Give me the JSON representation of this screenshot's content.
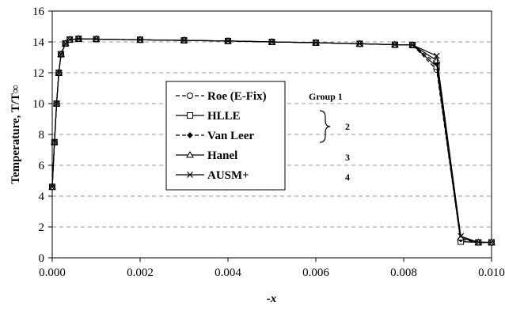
{
  "chart_data": {
    "type": "line",
    "title": "",
    "xlabel": "-x",
    "ylabel": "Temperature, T/T∞",
    "xlim": [
      0.0,
      0.01
    ],
    "ylim": [
      0,
      16
    ],
    "x_ticks": [
      "0.000",
      "0.002",
      "0.004",
      "0.006",
      "0.008",
      "0.010"
    ],
    "y_ticks": [
      "0",
      "2",
      "4",
      "6",
      "8",
      "10",
      "12",
      "14",
      "16"
    ],
    "grid": "horizontal dashed",
    "legend_position": "center-left",
    "series": [
      {
        "name": "Roe (E-Fix)",
        "marker": "open-circle",
        "dash": "dashed",
        "x": [
          0.0,
          5e-05,
          0.0001,
          0.00015,
          0.0002,
          0.0003,
          0.0004,
          0.0006,
          0.001,
          0.002,
          0.003,
          0.004,
          0.005,
          0.006,
          0.007,
          0.0078,
          0.0082,
          0.00875,
          0.0093,
          0.0097,
          0.0101
        ],
        "y": [
          4.6,
          7.5,
          10.0,
          12.0,
          13.2,
          13.9,
          14.15,
          14.2,
          14.18,
          14.14,
          14.1,
          14.06,
          14.0,
          13.95,
          13.88,
          13.82,
          13.8,
          12.2,
          1.05,
          1.0,
          1.0
        ]
      },
      {
        "name": "HLLE",
        "marker": "open-square",
        "dash": "solid",
        "x": [
          0.0,
          5e-05,
          0.0001,
          0.00015,
          0.0002,
          0.0003,
          0.0004,
          0.0006,
          0.001,
          0.002,
          0.003,
          0.004,
          0.005,
          0.006,
          0.007,
          0.0078,
          0.0082,
          0.00875,
          0.0093,
          0.0097,
          0.0101
        ],
        "y": [
          4.6,
          7.5,
          10.0,
          12.0,
          13.2,
          13.9,
          14.15,
          14.2,
          14.18,
          14.14,
          14.1,
          14.06,
          14.0,
          13.95,
          13.88,
          13.82,
          13.8,
          12.4,
          1.05,
          1.0,
          1.0
        ]
      },
      {
        "name": "Van Leer",
        "marker": "filled-diamond",
        "dash": "dashed",
        "x": [
          0.0,
          5e-05,
          0.0001,
          0.00015,
          0.0002,
          0.0003,
          0.0004,
          0.0006,
          0.001,
          0.002,
          0.003,
          0.004,
          0.005,
          0.006,
          0.007,
          0.0078,
          0.0082,
          0.00875,
          0.0093,
          0.0097,
          0.0101
        ],
        "y": [
          4.6,
          7.5,
          10.0,
          12.0,
          13.2,
          13.9,
          14.15,
          14.2,
          14.18,
          14.14,
          14.1,
          14.06,
          14.0,
          13.95,
          13.88,
          13.82,
          13.8,
          12.6,
          1.2,
          1.0,
          1.0
        ]
      },
      {
        "name": "Hanel",
        "marker": "open-triangle",
        "dash": "solid",
        "x": [
          0.0,
          5e-05,
          0.0001,
          0.00015,
          0.0002,
          0.0003,
          0.0004,
          0.0006,
          0.001,
          0.002,
          0.003,
          0.004,
          0.005,
          0.006,
          0.007,
          0.0078,
          0.0082,
          0.00875,
          0.0093,
          0.0097,
          0.0101
        ],
        "y": [
          4.6,
          7.5,
          10.0,
          12.0,
          13.2,
          13.9,
          14.15,
          14.2,
          14.18,
          14.14,
          14.1,
          14.06,
          14.0,
          13.95,
          13.88,
          13.82,
          13.8,
          12.8,
          1.3,
          1.0,
          1.0
        ]
      },
      {
        "name": "AUSM+",
        "marker": "x-cross",
        "dash": "solid",
        "x": [
          0.0,
          5e-05,
          0.0001,
          0.00015,
          0.0002,
          0.0003,
          0.0004,
          0.0006,
          0.001,
          0.002,
          0.003,
          0.004,
          0.005,
          0.006,
          0.007,
          0.0078,
          0.0082,
          0.00875,
          0.0093,
          0.0097,
          0.0101
        ],
        "y": [
          4.6,
          7.5,
          10.0,
          12.0,
          13.2,
          13.9,
          14.15,
          14.2,
          14.18,
          14.14,
          14.1,
          14.06,
          14.0,
          13.95,
          13.88,
          13.82,
          13.8,
          13.1,
          1.4,
          1.0,
          1.0
        ]
      }
    ],
    "annotations": [
      {
        "text": "Group 1",
        "series_index": 0
      },
      {
        "text": "2",
        "series_index": 1
      },
      {
        "text": "3",
        "series_index": 3
      },
      {
        "text": "4",
        "series_index": 4
      }
    ]
  },
  "colors": {
    "line": "#000000",
    "grid": "#9a9a9a",
    "background": "#ffffff"
  }
}
